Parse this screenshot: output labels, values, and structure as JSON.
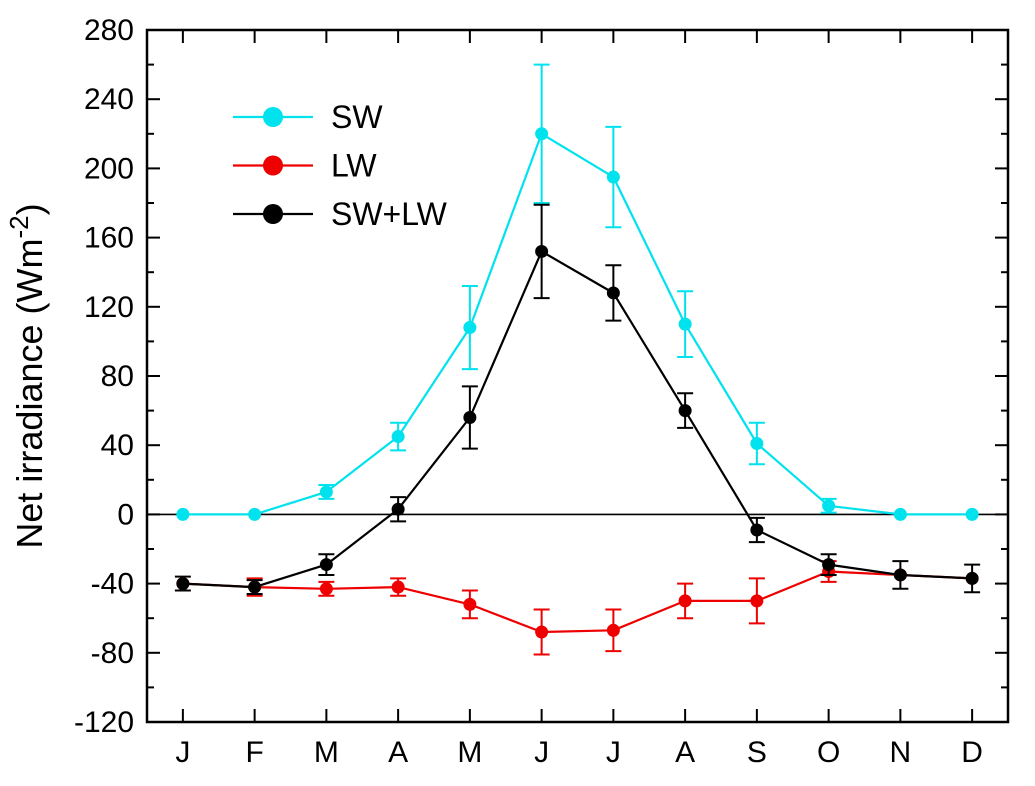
{
  "chart_data": {
    "type": "line",
    "title": "",
    "xlabel": "",
    "ylabel": {
      "prefix": "Net irradiance (Wm",
      "superscript": "-2",
      "suffix": ")"
    },
    "categories": [
      "J",
      "F",
      "M",
      "A",
      "M",
      "J",
      "J",
      "A",
      "S",
      "O",
      "N",
      "D"
    ],
    "ylim": [
      -120,
      280
    ],
    "ytick_step": 40,
    "ytick_minor_step": 20,
    "grid": false,
    "zero_line": true,
    "legend_position": "top-left-inside",
    "series": [
      {
        "name": "SW",
        "color": "#00E2EE",
        "values": [
          0,
          0,
          13,
          45,
          108,
          220,
          195,
          110,
          41,
          5,
          0,
          0
        ],
        "errors": [
          null,
          null,
          4,
          8,
          24,
          40,
          29,
          19,
          12,
          4,
          null,
          null
        ]
      },
      {
        "name": "LW",
        "color": "#EE0000",
        "values": [
          -40,
          -42,
          -43,
          -42,
          -52,
          -68,
          -67,
          -50,
          -50,
          -33,
          -35,
          -37
        ],
        "errors": [
          null,
          5,
          4,
          5,
          8,
          13,
          12,
          10,
          13,
          6,
          null,
          null
        ]
      },
      {
        "name": "SW+LW",
        "color": "#000000",
        "values": [
          -40,
          -42,
          -29,
          3,
          56,
          152,
          128,
          60,
          -9,
          -29,
          -35,
          -37
        ],
        "errors": [
          4,
          4,
          6,
          7,
          18,
          27,
          16,
          10,
          7,
          6,
          8,
          8
        ]
      }
    ]
  },
  "colors": {
    "background": "#FFFFFF",
    "axis": "#000000"
  }
}
